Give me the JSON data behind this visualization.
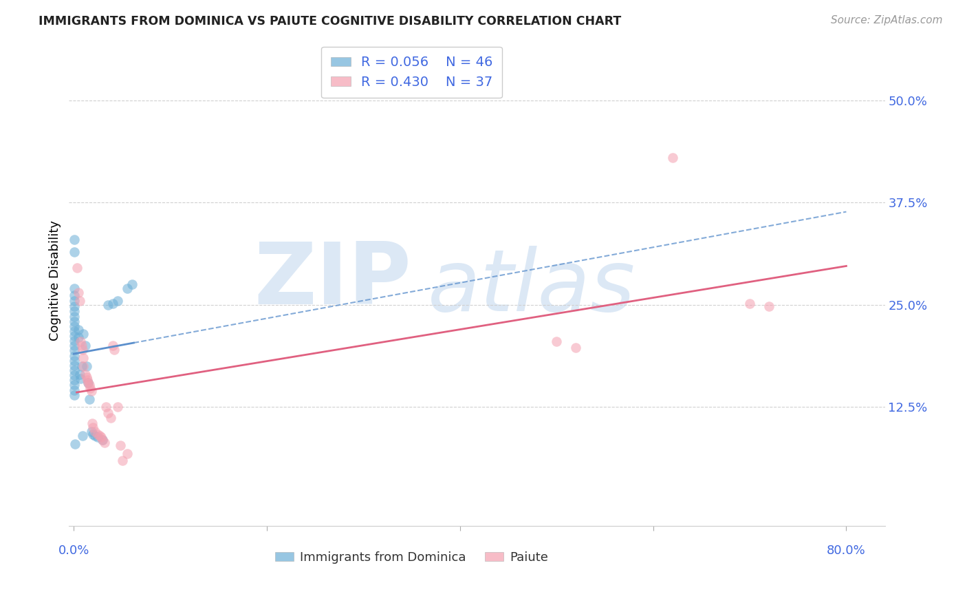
{
  "title": "IMMIGRANTS FROM DOMINICA VS PAIUTE COGNITIVE DISABILITY CORRELATION CHART",
  "source": "Source: ZipAtlas.com",
  "ylabel": "Cognitive Disability",
  "xlim": [
    -0.005,
    0.84
  ],
  "ylim": [
    -0.02,
    0.58
  ],
  "xtick_positions": [
    0.0,
    0.8
  ],
  "xtick_labels": [
    "0.0%",
    "80.0%"
  ],
  "ytick_positions": [
    0.125,
    0.25,
    0.375,
    0.5
  ],
  "ytick_labels": [
    "12.5%",
    "25.0%",
    "37.5%",
    "50.0%"
  ],
  "blue_R": 0.056,
  "blue_N": 46,
  "pink_R": 0.43,
  "pink_N": 37,
  "blue_color": "#6baed6",
  "pink_color": "#f4a0b0",
  "blue_line_color": "#5b8fcc",
  "pink_line_color": "#e06080",
  "blue_scatter": [
    [
      0.0008,
      0.33
    ],
    [
      0.0008,
      0.315
    ],
    [
      0.0008,
      0.27
    ],
    [
      0.0008,
      0.262
    ],
    [
      0.0008,
      0.255
    ],
    [
      0.0008,
      0.248
    ],
    [
      0.0008,
      0.242
    ],
    [
      0.0008,
      0.236
    ],
    [
      0.0008,
      0.23
    ],
    [
      0.0008,
      0.224
    ],
    [
      0.0008,
      0.218
    ],
    [
      0.0008,
      0.212
    ],
    [
      0.0008,
      0.206
    ],
    [
      0.0008,
      0.2
    ],
    [
      0.0008,
      0.194
    ],
    [
      0.0008,
      0.188
    ],
    [
      0.0008,
      0.182
    ],
    [
      0.0008,
      0.176
    ],
    [
      0.0008,
      0.17
    ],
    [
      0.0008,
      0.164
    ],
    [
      0.0008,
      0.158
    ],
    [
      0.0008,
      0.152
    ],
    [
      0.0008,
      0.146
    ],
    [
      0.0008,
      0.14
    ],
    [
      0.005,
      0.22
    ],
    [
      0.005,
      0.21
    ],
    [
      0.006,
      0.165
    ],
    [
      0.007,
      0.16
    ],
    [
      0.008,
      0.175
    ],
    [
      0.009,
      0.09
    ],
    [
      0.01,
      0.215
    ],
    [
      0.012,
      0.2
    ],
    [
      0.013,
      0.175
    ],
    [
      0.015,
      0.155
    ],
    [
      0.016,
      0.135
    ],
    [
      0.018,
      0.095
    ],
    [
      0.02,
      0.092
    ],
    [
      0.022,
      0.09
    ],
    [
      0.025,
      0.088
    ],
    [
      0.03,
      0.085
    ],
    [
      0.035,
      0.25
    ],
    [
      0.04,
      0.252
    ],
    [
      0.045,
      0.255
    ],
    [
      0.055,
      0.27
    ],
    [
      0.06,
      0.275
    ],
    [
      0.001,
      0.08
    ]
  ],
  "pink_scatter": [
    [
      0.003,
      0.295
    ],
    [
      0.005,
      0.265
    ],
    [
      0.006,
      0.255
    ],
    [
      0.007,
      0.205
    ],
    [
      0.008,
      0.2
    ],
    [
      0.009,
      0.195
    ],
    [
      0.01,
      0.185
    ],
    [
      0.01,
      0.175
    ],
    [
      0.012,
      0.165
    ],
    [
      0.013,
      0.162
    ],
    [
      0.014,
      0.158
    ],
    [
      0.015,
      0.155
    ],
    [
      0.016,
      0.152
    ],
    [
      0.017,
      0.148
    ],
    [
      0.018,
      0.145
    ],
    [
      0.019,
      0.105
    ],
    [
      0.02,
      0.1
    ],
    [
      0.022,
      0.095
    ],
    [
      0.025,
      0.092
    ],
    [
      0.027,
      0.09
    ],
    [
      0.028,
      0.088
    ],
    [
      0.03,
      0.085
    ],
    [
      0.032,
      0.082
    ],
    [
      0.033,
      0.125
    ],
    [
      0.035,
      0.118
    ],
    [
      0.038,
      0.112
    ],
    [
      0.04,
      0.2
    ],
    [
      0.042,
      0.195
    ],
    [
      0.045,
      0.125
    ],
    [
      0.048,
      0.078
    ],
    [
      0.05,
      0.06
    ],
    [
      0.055,
      0.068
    ],
    [
      0.5,
      0.205
    ],
    [
      0.52,
      0.198
    ],
    [
      0.62,
      0.43
    ],
    [
      0.7,
      0.252
    ],
    [
      0.72,
      0.248
    ]
  ],
  "background_color": "#ffffff",
  "grid_color": "#d0d0d0",
  "watermark_zip": "ZIP",
  "watermark_atlas": "atlas",
  "watermark_color": "#dce8f5"
}
